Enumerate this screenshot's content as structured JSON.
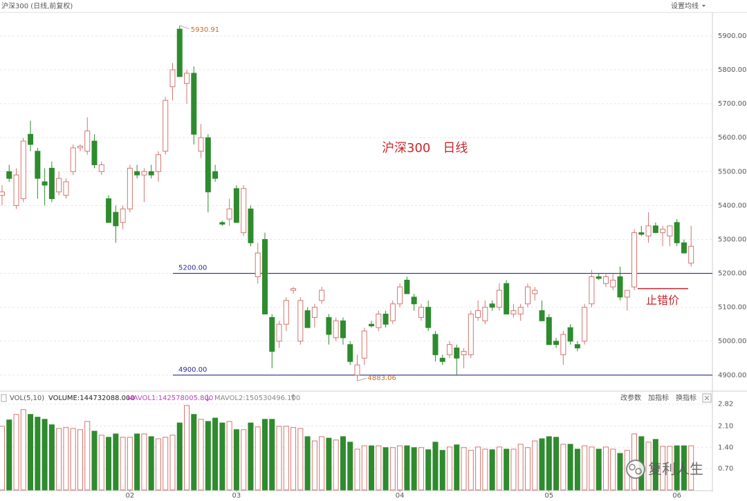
{
  "chart_data": {
    "type": "candlestick",
    "title": "沪深300 (日线,前复权)",
    "annotation": "沪深300　日线",
    "categories": [
      null,
      null,
      null,
      null,
      null,
      null,
      null,
      null,
      null,
      null,
      null,
      null,
      null,
      null,
      null,
      null,
      null,
      null,
      "02",
      null,
      null,
      null,
      null,
      null,
      null,
      null,
      null,
      null,
      null,
      null,
      null,
      null,
      null,
      "03",
      null,
      null,
      null,
      null,
      null,
      null,
      null,
      null,
      null,
      null,
      null,
      null,
      null,
      null,
      null,
      null,
      null,
      null,
      null,
      null,
      null,
      null,
      "04",
      null,
      null,
      null,
      null,
      null,
      null,
      null,
      null,
      null,
      null,
      null,
      null,
      null,
      null,
      null,
      null,
      null,
      null,
      null,
      null,
      "05",
      null,
      null,
      null,
      null,
      null,
      null,
      null,
      null,
      null,
      null,
      null,
      null,
      null,
      null,
      null,
      null,
      null,
      "06",
      null,
      null
    ],
    "open": [
      5430,
      5500,
      5400,
      5420,
      5610,
      5560,
      5470,
      5510,
      5440,
      5430,
      5500,
      5570,
      5560,
      5590,
      5500,
      5420,
      5380,
      5350,
      5390,
      5500,
      5490,
      5500,
      5500,
      5560,
      5750,
      5920,
      5760,
      5790,
      5560,
      5600,
      5500,
      5350,
      5360,
      5450,
      5320,
      5390,
      5190,
      5300,
      5070,
      5000,
      5050,
      5150,
      5000,
      5090,
      5070,
      5120,
      5070,
      5010,
      5060,
      4990,
      4900,
      4950,
      5050,
      5040,
      5080,
      5060,
      5110,
      5180,
      5130,
      5070,
      5100,
      5020,
      4950,
      4960,
      4980,
      4960,
      4960,
      5070,
      5060,
      5110,
      5100,
      5170,
      5080,
      5080,
      5110,
      5140,
      5090,
      5070,
      5000,
      4960,
      5040,
      4990,
      5000,
      5110,
      5190,
      5170,
      5160,
      5190,
      5130,
      5160,
      5320,
      5310,
      5340,
      5320,
      5310,
      5350,
      5290,
      5230
    ],
    "high": [
      5460,
      5520,
      5510,
      5600,
      5650,
      5570,
      5510,
      5530,
      5500,
      5480,
      5580,
      5580,
      5660,
      5610,
      5530,
      5430,
      5400,
      5400,
      5520,
      5520,
      5510,
      5520,
      5560,
      5720,
      5820,
      5930.91,
      5800,
      5810,
      5640,
      5610,
      5520,
      5355,
      5420,
      5460,
      5460,
      5400,
      5290,
      5320,
      5080,
      5060,
      5130,
      5160,
      5130,
      5100,
      5110,
      5160,
      5080,
      5070,
      5070,
      5000,
      4960,
      5040,
      5060,
      5090,
      5090,
      5120,
      5170,
      5190,
      5140,
      5110,
      5120,
      5030,
      4960,
      5000,
      4990,
      4980,
      5090,
      5120,
      5120,
      5120,
      5170,
      5180,
      5110,
      5110,
      5170,
      5160,
      5120,
      5080,
      5010,
      5030,
      5050,
      5000,
      5110,
      5210,
      5200,
      5200,
      5200,
      5220,
      5150,
      5330,
      5340,
      5380,
      5350,
      5340,
      5340,
      5360,
      5300,
      5340
    ],
    "low": [
      5400,
      5470,
      5390,
      5410,
      5560,
      5420,
      5400,
      5410,
      5430,
      5420,
      5490,
      5560,
      5550,
      5510,
      5490,
      5350,
      5290,
      5330,
      5380,
      5480,
      5410,
      5480,
      5470,
      5550,
      5710,
      5780,
      5700,
      5580,
      5540,
      5380,
      5470,
      5340,
      5340,
      5350,
      5310,
      5280,
      5170,
      5080,
      4920,
      4980,
      5030,
      5140,
      4990,
      5040,
      5040,
      5110,
      4990,
      5000,
      4990,
      4930,
      4883.06,
      4930,
      5040,
      5030,
      5040,
      5050,
      5100,
      5140,
      5090,
      5060,
      5030,
      4940,
      4930,
      4950,
      4900,
      4920,
      4950,
      5060,
      5050,
      5090,
      5090,
      5080,
      5070,
      5060,
      5100,
      5120,
      5060,
      4990,
      4980,
      4930,
      4990,
      4970,
      4990,
      5100,
      5180,
      5160,
      5150,
      5120,
      5090,
      5150,
      5310,
      5290,
      5320,
      5280,
      5280,
      5280,
      5260,
      5220
    ],
    "close": [
      5440,
      5480,
      5490,
      5590,
      5580,
      5480,
      5460,
      5420,
      5480,
      5470,
      5570,
      5575,
      5620,
      5520,
      5520,
      5350,
      5340,
      5390,
      5510,
      5490,
      5500,
      5490,
      5550,
      5710,
      5800,
      5780,
      5790,
      5610,
      5600,
      5440,
      5480,
      5345,
      5390,
      5350,
      5450,
      5290,
      5260,
      5080,
      4970,
      5050,
      5120,
      5155,
      5120,
      5040,
      5100,
      5150,
      5020,
      5060,
      5010,
      4940,
      4930,
      5030,
      5045,
      5080,
      5050,
      5110,
      5160,
      5140,
      5110,
      5100,
      5040,
      4960,
      4940,
      4990,
      4950,
      4970,
      5080,
      5090,
      5100,
      5100,
      5150,
      5080,
      5090,
      5100,
      5160,
      5150,
      5060,
      4990,
      4990,
      5020,
      5000,
      4980,
      5100,
      5190,
      5185,
      5190,
      5180,
      5130,
      5150,
      5320,
      5315,
      5340,
      5320,
      5330,
      5340,
      5290,
      5260,
      5280
    ],
    "volume": [
      2.09,
      2.3,
      2.48,
      2.64,
      2.48,
      2.39,
      2.32,
      2.14,
      2.02,
      2.05,
      2.02,
      1.98,
      2.25,
      1.93,
      1.8,
      1.73,
      1.84,
      1.73,
      1.73,
      1.84,
      1.84,
      1.75,
      1.68,
      1.73,
      1.8,
      2.2,
      2.77,
      2.48,
      2.32,
      2.25,
      2.36,
      2.2,
      2.25,
      1.98,
      1.98,
      2.2,
      2.07,
      2.32,
      2.32,
      2.09,
      2.09,
      2.05,
      2.02,
      1.75,
      1.61,
      1.75,
      1.7,
      1.64,
      1.75,
      1.57,
      1.34,
      1.45,
      1.45,
      1.45,
      1.39,
      1.39,
      1.45,
      1.45,
      1.39,
      1.39,
      1.32,
      1.57,
      1.3,
      1.41,
      1.48,
      1.39,
      1.3,
      1.41,
      1.34,
      1.32,
      1.41,
      1.34,
      1.34,
      1.5,
      1.39,
      1.61,
      1.68,
      1.75,
      1.73,
      1.5,
      1.5,
      1.34,
      1.45,
      1.41,
      1.34,
      1.41,
      1.34,
      1.2,
      1.3,
      1.84,
      1.75,
      1.57,
      1.66,
      1.43,
      1.43,
      1.45,
      1.45,
      1.45
    ],
    "up_color": "#d4736e",
    "down_color": "#2e8b2e",
    "annotation_color": "#c8282d",
    "ylim": [
      4865,
      5969.2
    ],
    "yticks": [
      {
        "value": 4900,
        "label": "4900.00"
      },
      {
        "value": 5000,
        "label": "5000.00"
      },
      {
        "value": 5100,
        "label": "5100.00"
      },
      {
        "value": 5200,
        "label": "5200.00"
      },
      {
        "value": 5300,
        "label": "5300.00"
      },
      {
        "value": 5400,
        "label": "5400.00"
      },
      {
        "value": 5500,
        "label": "5500.00"
      },
      {
        "value": 5600,
        "label": "5600.00"
      },
      {
        "value": 5700,
        "label": "5700.00"
      },
      {
        "value": 5800,
        "label": "5800.00"
      },
      {
        "value": 5900,
        "label": "5900.00"
      }
    ],
    "grid": true,
    "levels": [
      {
        "value": 5200,
        "label": "5200.00"
      },
      {
        "value": 4900,
        "label": "4900.00"
      }
    ],
    "stop": {
      "value": 5155,
      "label": "止错价"
    },
    "vol_ylim": [
      0,
      2.95
    ],
    "vol_yticks": [
      {
        "value": 0.7,
        "label": "0.70"
      },
      {
        "value": 1.4,
        "label": "1.40"
      },
      {
        "value": 2.1,
        "label": "2.10"
      },
      2.82
    ],
    "vol_header": [
      "VOL(5,10)",
      "VOLUME:144732088.000",
      "MAVOL1:142578005.800",
      "MAVOL2:150530496.100"
    ]
  },
  "ui": {
    "set_ma": "设置均线",
    "buttons": [
      "改参数",
      "加指标",
      "换指标"
    ],
    "watermark": "复利人生"
  }
}
